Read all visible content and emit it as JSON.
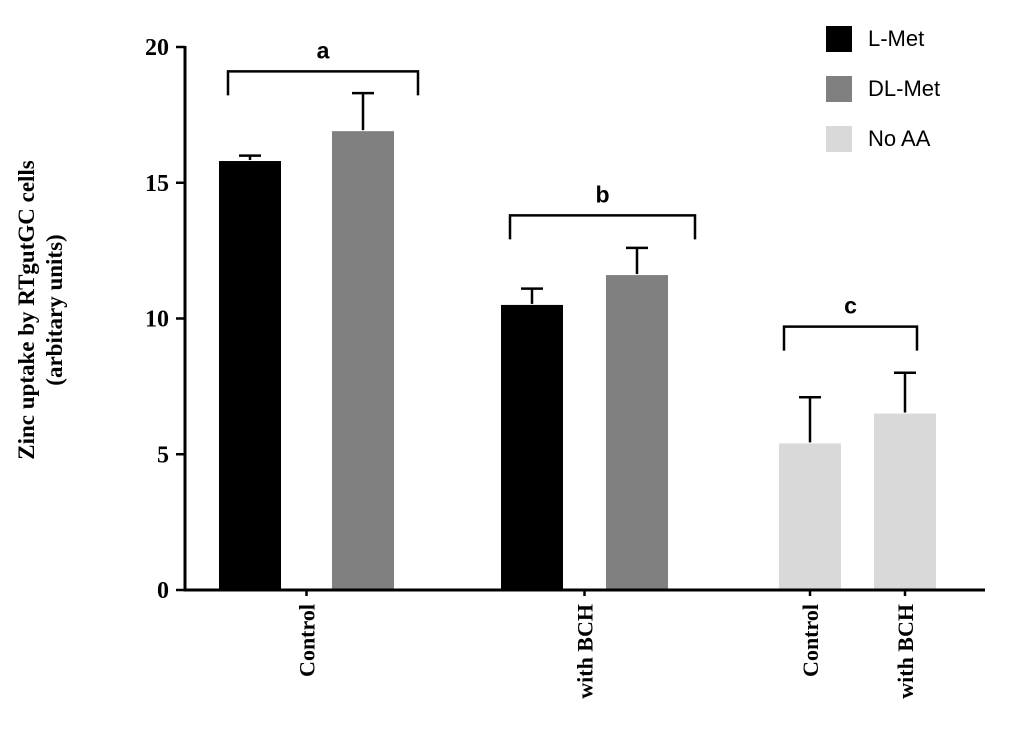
{
  "figure": {
    "background": "#ffffff"
  },
  "chart_data": {
    "type": "bar",
    "title": "",
    "ylabel_lines": [
      "Zinc uptake by RTgutGC cells",
      "(arbitary units)"
    ],
    "xlabel": "",
    "ylim": [
      0,
      20
    ],
    "yticks": [
      0,
      5,
      10,
      15,
      20
    ],
    "grid": false,
    "legend_position": "top-right",
    "error_bars": "upper-only",
    "series": [
      {
        "name": "L-Met",
        "color": "#000000"
      },
      {
        "name": "DL-Met",
        "color": "#808080"
      },
      {
        "name": "No AA",
        "color": "#d9d9d9"
      }
    ],
    "bars": [
      {
        "category": "Control",
        "series": "L-Met",
        "value": 15.8,
        "error": 0.2
      },
      {
        "category": "Control",
        "series": "DL-Met",
        "value": 16.9,
        "error": 1.4
      },
      {
        "category": "with BCH",
        "series": "L-Met",
        "value": 10.5,
        "error": 0.6
      },
      {
        "category": "with BCH",
        "series": "DL-Met",
        "value": 11.6,
        "error": 1.0
      },
      {
        "category": "Control",
        "series": "No AA",
        "value": 5.4,
        "error": 1.7
      },
      {
        "category": "with BCH",
        "series": "No AA",
        "value": 6.5,
        "error": 1.5
      }
    ],
    "x_tick_labels": [
      {
        "label": "Control",
        "bars": [
          0,
          1
        ]
      },
      {
        "label": "with BCH",
        "bars": [
          2,
          3
        ]
      },
      {
        "label": "Control",
        "bars": [
          4
        ]
      },
      {
        "label": "with BCH",
        "bars": [
          5
        ]
      }
    ],
    "annotations": [
      {
        "label": "a",
        "bars": [
          0,
          1
        ],
        "y": 19.1
      },
      {
        "label": "b",
        "bars": [
          2,
          3
        ],
        "y": 13.8
      },
      {
        "label": "c",
        "bars": [
          4,
          5
        ],
        "y": 9.7
      }
    ]
  }
}
